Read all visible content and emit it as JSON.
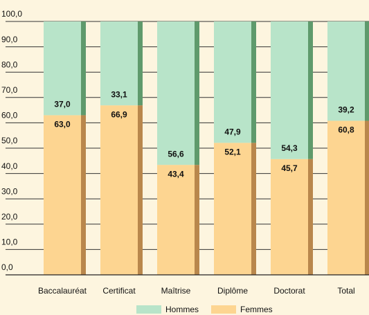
{
  "chart_data": {
    "type": "stacked-bar",
    "categories": [
      "Baccalauréat",
      "Certificat",
      "Maîtrise",
      "Diplôme",
      "Doctorat",
      "Total"
    ],
    "series": [
      {
        "name": "Hommes",
        "color": "#b8e4c9",
        "side_color": "#5f9a6c",
        "values": [
          37.0,
          33.1,
          56.6,
          47.9,
          54.3,
          39.2
        ],
        "value_labels": [
          "37,0",
          "33,1",
          "56,6",
          "47,9",
          "54,3",
          "39,2"
        ]
      },
      {
        "name": "Femmes",
        "color": "#fdd591",
        "side_color": "#b9874c",
        "values": [
          63.0,
          66.9,
          43.4,
          52.1,
          45.7,
          60.8
        ],
        "value_labels": [
          "63,0",
          "66,9",
          "43,4",
          "52,1",
          "45,7",
          "60,8"
        ]
      }
    ],
    "ylim": [
      0,
      100
    ],
    "yticks": [
      {
        "value": 0,
        "label": "0,0"
      },
      {
        "value": 10,
        "label": "10,0"
      },
      {
        "value": 20,
        "label": "20,0"
      },
      {
        "value": 30,
        "label": "30,0"
      },
      {
        "value": 40,
        "label": "40,0"
      },
      {
        "value": 50,
        "label": "50,0"
      },
      {
        "value": 60,
        "label": "60,0"
      },
      {
        "value": 70,
        "label": "70,0"
      },
      {
        "value": 80,
        "label": "80,0"
      },
      {
        "value": 90,
        "label": "90,0"
      },
      {
        "value": 100,
        "label": "100,0"
      }
    ],
    "grid": true
  }
}
